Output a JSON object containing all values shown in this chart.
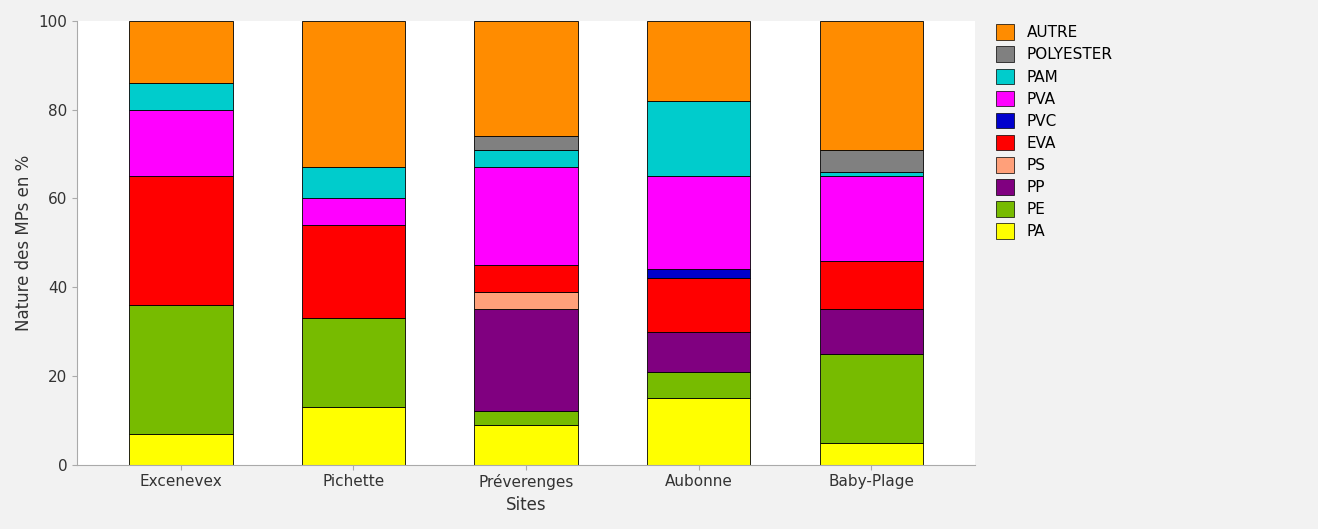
{
  "sites": [
    "Excenevex",
    "Pichette",
    "Préverenges",
    "Aubonne",
    "Baby-Plage"
  ],
  "categories": [
    "PA",
    "PE",
    "PP",
    "PS",
    "EVA",
    "PVC",
    "PVA",
    "PAM",
    "POLYESTER",
    "AUTRE"
  ],
  "colors": [
    "#FFFF00",
    "#77BB00",
    "#800080",
    "#FFA07A",
    "#FF0000",
    "#0000CD",
    "#FF00FF",
    "#00CCCC",
    "#808080",
    "#FF8C00"
  ],
  "values": {
    "PA": [
      7,
      13,
      9,
      15,
      5
    ],
    "PE": [
      29,
      20,
      3,
      6,
      20
    ],
    "PP": [
      0,
      0,
      23,
      9,
      10
    ],
    "PS": [
      0,
      0,
      4,
      0,
      0
    ],
    "EVA": [
      29,
      21,
      6,
      12,
      11
    ],
    "PVC": [
      0,
      0,
      0,
      2,
      0
    ],
    "PVA": [
      15,
      6,
      22,
      21,
      19
    ],
    "PAM": [
      6,
      7,
      4,
      17,
      1
    ],
    "POLYESTER": [
      0,
      0,
      3,
      0,
      5
    ],
    "AUTRE": [
      14,
      33,
      26,
      18,
      29
    ]
  },
  "ylabel": "Nature des MPs en %",
  "xlabel": "Sites",
  "ylim": [
    0,
    100
  ],
  "legend_order": [
    "AUTRE",
    "POLYESTER",
    "PAM",
    "PVA",
    "PVC",
    "EVA",
    "PS",
    "PP",
    "PE",
    "PA"
  ],
  "bg_color": "#F2F2F2",
  "plot_bg": "#FFFFFF"
}
